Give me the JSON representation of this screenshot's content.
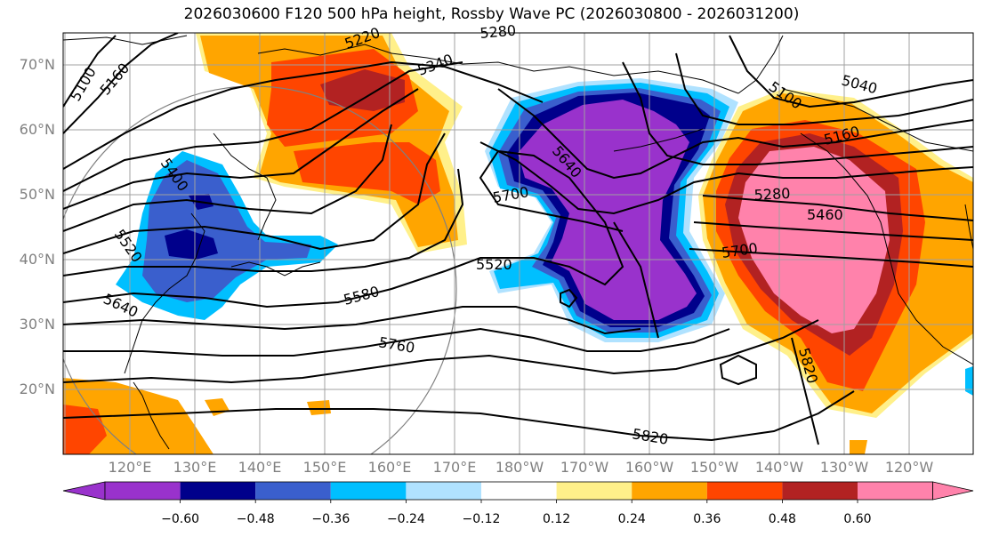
{
  "title": "2026030600 F120 500 hPa height, Rossby Wave PC (2026030800 - 2026031200)",
  "lat_labels": [
    "70°N",
    "60°N",
    "50°N",
    "40°N",
    "30°N",
    "20°N"
  ],
  "lon_labels": [
    "120°E",
    "130°E",
    "140°E",
    "150°E",
    "160°E",
    "170°E",
    "180°W",
    "170°W",
    "160°W",
    "150°W",
    "140°W",
    "130°W",
    "120°W"
  ],
  "contour_labels": [
    "5100",
    "5160",
    "5220",
    "5280",
    "5340",
    "5400",
    "5520",
    "5640",
    "5580",
    "5760",
    "5700",
    "5640",
    "5520",
    "5820",
    "5100",
    "5040",
    "5160",
    "5280",
    "5460",
    "5700",
    "5820"
  ],
  "colorbar": {
    "ticks": [
      "−0.60",
      "−0.48",
      "−0.36",
      "−0.24",
      "−0.12",
      "0.12",
      "0.24",
      "0.36",
      "0.48",
      "0.60"
    ],
    "colors": [
      "#9932cc",
      "#00008b",
      "#3a5fcd",
      "#00bfff",
      "#b0e2ff",
      "#ffffff",
      "#fff08a",
      "#ffa500",
      "#ff4500",
      "#b22222",
      "#ff82ab"
    ]
  },
  "legend": {
    "neg3": "#00008b",
    "neg2": "#3a5fcd",
    "neg1": "#00bfff",
    "neg0": "#b0e2ff",
    "pos1": "#fff08a",
    "pos2": "#ffa500",
    "pos3": "#ff4500",
    "pos4": "#b22222",
    "pos5": "#ff82ab",
    "negmax": "#9932cc"
  }
}
